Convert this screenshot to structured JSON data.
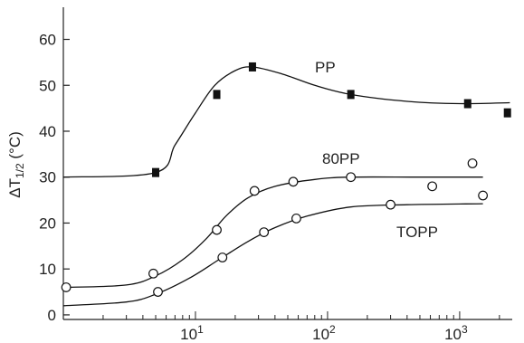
{
  "chart_data": {
    "type": "scatter",
    "x_scale": "log",
    "xlim": [
      1,
      2500
    ],
    "ylim": [
      -1,
      67
    ],
    "ylabel": "ΔT1/2 (°C)",
    "xlabel": "",
    "title": "",
    "grid": false,
    "y_ticks": [
      0,
      10,
      20,
      30,
      40,
      50,
      60
    ],
    "y_tick_labels": [
      "0",
      "10",
      "20",
      "30",
      "40",
      "50",
      "60"
    ],
    "x_major_ticks": [
      10,
      100,
      1000
    ],
    "x_tick_labels": [
      {
        "base": "10",
        "exp": "1"
      },
      {
        "base": "10",
        "exp": "2"
      },
      {
        "base": "10",
        "exp": "3"
      }
    ],
    "series": [
      {
        "name": "PP",
        "marker": "filled-square",
        "color": "#111111",
        "points": [
          {
            "x": 5,
            "y": 31
          },
          {
            "x": 14.5,
            "y": 48
          },
          {
            "x": 27,
            "y": 54
          },
          {
            "x": 150,
            "y": 48
          },
          {
            "x": 1150,
            "y": 46
          },
          {
            "x": 2300,
            "y": 44
          }
        ],
        "curve": [
          {
            "x": 1,
            "y": 30
          },
          {
            "x": 5,
            "y": 31
          },
          {
            "x": 7,
            "y": 37
          },
          {
            "x": 10,
            "y": 44
          },
          {
            "x": 14,
            "y": 50
          },
          {
            "x": 20,
            "y": 53.2
          },
          {
            "x": 27,
            "y": 54
          },
          {
            "x": 45,
            "y": 52.5
          },
          {
            "x": 80,
            "y": 50
          },
          {
            "x": 150,
            "y": 48
          },
          {
            "x": 400,
            "y": 46.5
          },
          {
            "x": 1000,
            "y": 46
          },
          {
            "x": 2400,
            "y": 46.2
          }
        ]
      },
      {
        "name": "80PP",
        "marker": "open-circle",
        "color": "#111111",
        "points": [
          {
            "x": 1.05,
            "y": 6
          },
          {
            "x": 4.8,
            "y": 9
          },
          {
            "x": 14.5,
            "y": 18.5
          },
          {
            "x": 28,
            "y": 27
          },
          {
            "x": 55,
            "y": 29
          },
          {
            "x": 150,
            "y": 30
          },
          {
            "x": 620,
            "y": 28
          },
          {
            "x": 1250,
            "y": 33
          },
          {
            "x": 1500,
            "y": 26
          }
        ],
        "curve": [
          {
            "x": 1,
            "y": 6
          },
          {
            "x": 3,
            "y": 6.5
          },
          {
            "x": 5,
            "y": 8.5
          },
          {
            "x": 8,
            "y": 12
          },
          {
            "x": 12,
            "y": 16.5
          },
          {
            "x": 17,
            "y": 21.5
          },
          {
            "x": 25,
            "y": 25.5
          },
          {
            "x": 40,
            "y": 28
          },
          {
            "x": 80,
            "y": 29.5
          },
          {
            "x": 150,
            "y": 30
          },
          {
            "x": 500,
            "y": 30
          },
          {
            "x": 1500,
            "y": 30
          }
        ]
      },
      {
        "name": "TOPP",
        "marker": "open-circle",
        "color": "#111111",
        "points": [
          {
            "x": 5.2,
            "y": 5
          },
          {
            "x": 16,
            "y": 12.5
          },
          {
            "x": 33,
            "y": 18
          },
          {
            "x": 58,
            "y": 21
          },
          {
            "x": 300,
            "y": 24
          }
        ],
        "curve": [
          {
            "x": 1,
            "y": 2
          },
          {
            "x": 3,
            "y": 2.8
          },
          {
            "x": 5,
            "y": 4.5
          },
          {
            "x": 9,
            "y": 8
          },
          {
            "x": 15,
            "y": 12
          },
          {
            "x": 25,
            "y": 16
          },
          {
            "x": 40,
            "y": 19
          },
          {
            "x": 70,
            "y": 21.5
          },
          {
            "x": 150,
            "y": 23.5
          },
          {
            "x": 400,
            "y": 24
          },
          {
            "x": 1500,
            "y": 24.2
          }
        ]
      }
    ]
  }
}
